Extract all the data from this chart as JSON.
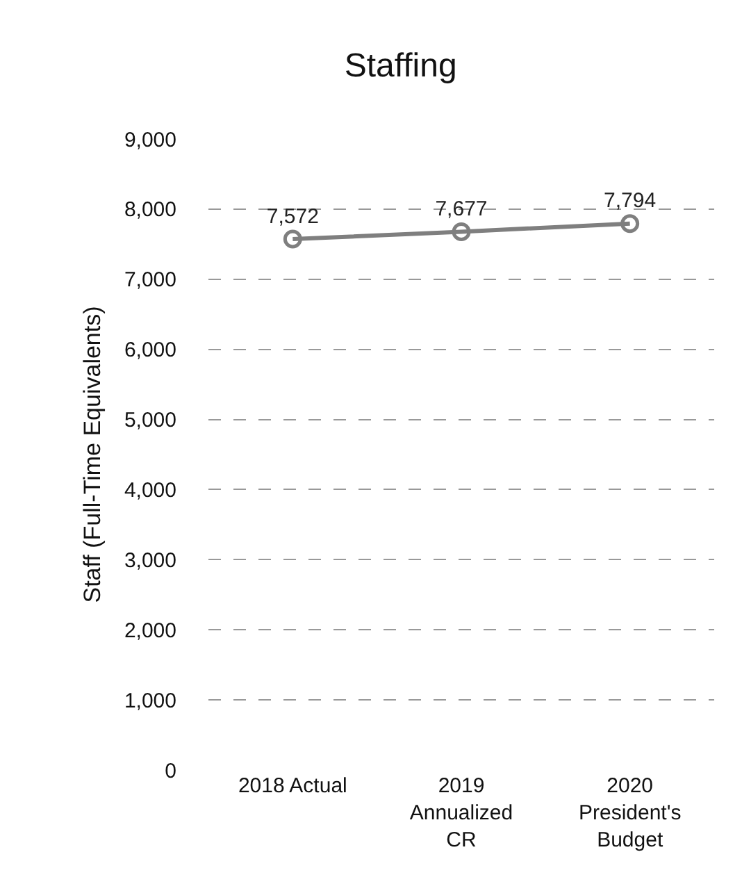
{
  "chart_data": {
    "type": "line",
    "title": "Staffing",
    "ylabel": "Staff (Full-Time Equivalents)",
    "categories": [
      "2018 Actual",
      "2019\nAnnualized\nCR",
      "2020\nPresident's\nBudget"
    ],
    "series": [
      {
        "color": "#7f7f7f",
        "values": [
          7572,
          7677,
          7794
        ],
        "value_labels": [
          "7,572",
          "7,677",
          "7,794"
        ]
      }
    ],
    "ylim": [
      0,
      9000
    ],
    "yticks": [
      {
        "value": 0,
        "label": "0"
      },
      {
        "value": 1000,
        "label": "1,000"
      },
      {
        "value": 2000,
        "label": "2,000"
      },
      {
        "value": 3000,
        "label": "3,000"
      },
      {
        "value": 4000,
        "label": "4,000"
      },
      {
        "value": 5000,
        "label": "5,000"
      },
      {
        "value": 6000,
        "label": "6,000"
      },
      {
        "value": 7000,
        "label": "7,000"
      },
      {
        "value": 8000,
        "label": "8,000"
      },
      {
        "value": 9000,
        "label": "9,000"
      }
    ],
    "grid": "y",
    "legend": false,
    "marker": "circle",
    "line_style": "solid"
  }
}
